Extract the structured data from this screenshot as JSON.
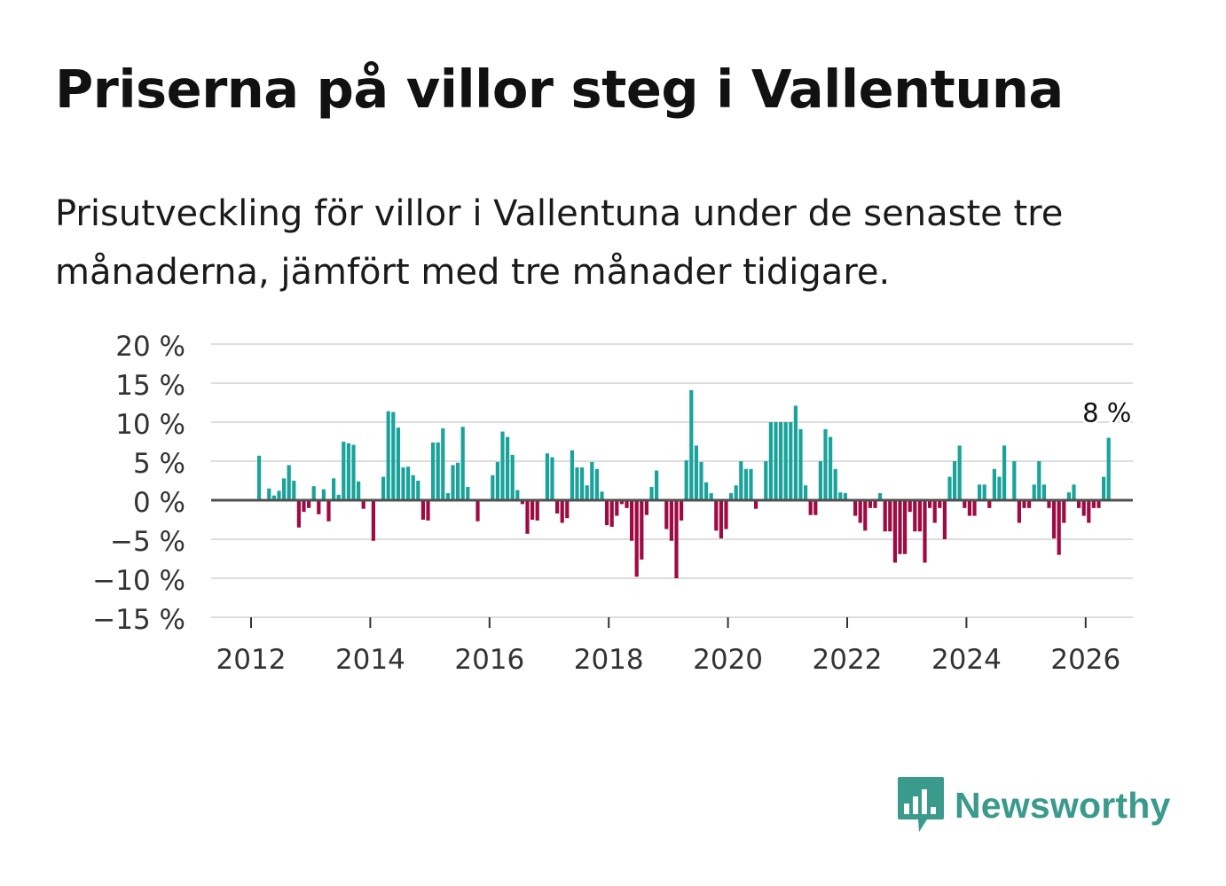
{
  "title": "Priserna på villor steg i Vallentuna",
  "subtitle": "Prisutveckling för villor i Vallentuna under de senaste tre månaderna, jämfört med tre månader tidigare.",
  "brand": {
    "name": "Newsworthy",
    "icon": "newsworthy-logo-icon",
    "color": "#3a9a8c"
  },
  "colors": {
    "positive": "#1aa39a",
    "negative": "#9e0a41",
    "zero_line": "#505050",
    "grid": "#dddddd"
  },
  "chart_data": {
    "type": "bar",
    "title": "Priserna på villor steg i Vallentuna",
    "xlabel": "",
    "ylabel": "",
    "unit": "%",
    "ylim": [
      -15,
      20
    ],
    "y_ticks": [
      20,
      15,
      10,
      5,
      0,
      -5,
      -10,
      -15
    ],
    "y_tick_labels": [
      "20 %",
      "15 %",
      "10 %",
      "5 %",
      "0 %",
      "−5 %",
      "−10 %",
      "−15 %"
    ],
    "x_ticks": [
      2012,
      2014,
      2016,
      2018,
      2020,
      2022,
      2024,
      2026
    ],
    "x_tick_labels": [
      "2012",
      "2014",
      "2016",
      "2018",
      "2020",
      "2022",
      "2024",
      "2026"
    ],
    "start": {
      "year": 2012,
      "month": 1
    },
    "annotation": {
      "text": "8 %",
      "point": "last"
    },
    "values": [
      0,
      5.7,
      0,
      1.5,
      0.6,
      1.2,
      2.8,
      4.5,
      2.5,
      -3.5,
      -1.5,
      -1,
      1.8,
      -1.8,
      1.4,
      -2.7,
      2.8,
      0.7,
      7.5,
      7.3,
      7.1,
      2.4,
      -1.1,
      0,
      -5.2,
      0,
      3,
      11.4,
      11.3,
      9.3,
      4.2,
      4.3,
      3.2,
      2.5,
      -2.5,
      -2.6,
      7.4,
      7.4,
      9.2,
      0.9,
      4.5,
      4.8,
      9.4,
      1.7,
      0,
      -2.7,
      0,
      0,
      3.2,
      4.9,
      8.8,
      8.1,
      5.8,
      1.3,
      -0.5,
      -4.3,
      -2.5,
      -2.6,
      0,
      6,
      5.5,
      -1.7,
      -2.9,
      -2.3,
      6.4,
      4.2,
      4.2,
      1.9,
      4.9,
      4,
      1.1,
      -3.2,
      -3.4,
      -2,
      -0.5,
      -1,
      -5.2,
      -9.8,
      -7.6,
      -1.9,
      1.7,
      3.8,
      0,
      -3.7,
      -5.2,
      -10,
      -2.6,
      5.1,
      14.1,
      7,
      4.9,
      2.3,
      0.9,
      -3.9,
      -4.9,
      -3.7,
      0.9,
      1.9,
      5,
      4,
      4,
      -1.1,
      0,
      5,
      10,
      10,
      10,
      10,
      10,
      12.1,
      9.1,
      1.9,
      -1.9,
      -1.9,
      5,
      9.1,
      8.1,
      4,
      1,
      0.9,
      0,
      -2,
      -2.9,
      -3.9,
      -1,
      -1,
      0.9,
      -4,
      -4,
      -8,
      -6.9,
      -6.9,
      -1.5,
      -4,
      -4,
      -8,
      -1,
      -2.9,
      -1,
      -5,
      3,
      5,
      7,
      -1,
      -2,
      -2,
      2,
      2,
      -1,
      4,
      3,
      7,
      0,
      5,
      -2.9,
      -1,
      -1,
      2,
      5,
      2,
      -1,
      -4.9,
      -7,
      -2.9,
      1,
      2,
      -1,
      -2,
      -2.9,
      -1,
      -1,
      3,
      8
    ]
  }
}
